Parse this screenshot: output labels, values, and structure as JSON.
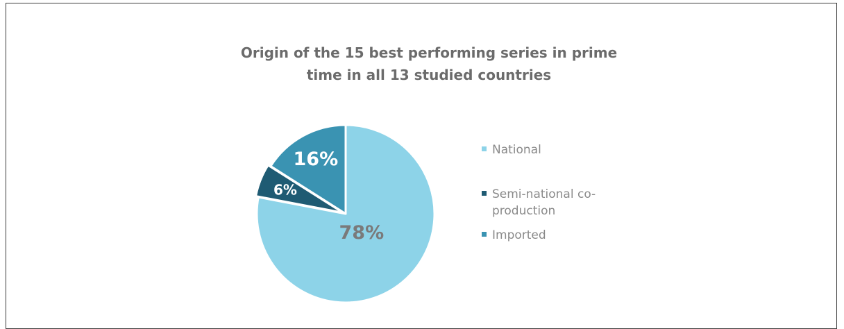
{
  "chart_data": {
    "type": "pie",
    "title_lines": [
      "Origin of the 15 best performing series in prime",
      "time in all 13 studied countries"
    ],
    "categories": [
      "National",
      "Semi-national co-production",
      "Imported"
    ],
    "values": [
      78,
      6,
      16
    ],
    "data_labels": [
      "78%",
      "6%",
      "16%"
    ],
    "legend_lines": [
      [
        "National"
      ],
      [
        "Semi-national co-",
        "production"
      ],
      [
        "Imported"
      ]
    ],
    "colors": [
      "#8dd3e8",
      "#1f5b73",
      "#3a93b2"
    ],
    "label_colors": [
      "#7a7a7a",
      "#ffffff",
      "#ffffff"
    ],
    "exploded_slice": 1,
    "legend_position": "right"
  }
}
